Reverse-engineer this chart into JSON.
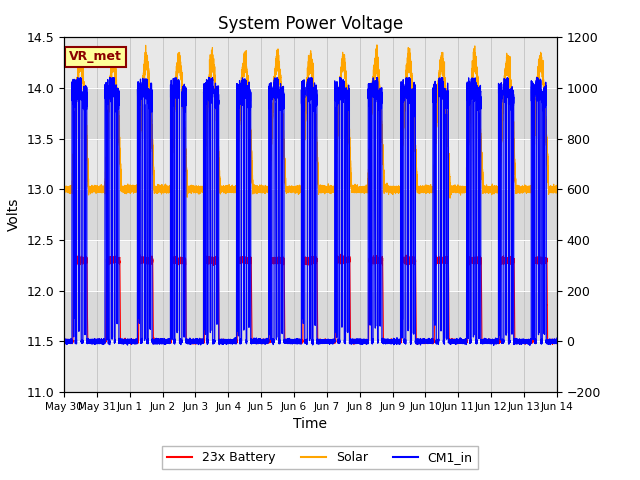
{
  "title": "System Power Voltage",
  "xlabel": "Time",
  "ylabel": "Volts",
  "ylim_left": [
    11.0,
    14.5
  ],
  "ylim_right": [
    -200,
    1200
  ],
  "yticks_left": [
    11.0,
    11.5,
    12.0,
    12.5,
    13.0,
    13.5,
    14.0,
    14.5
  ],
  "yticks_right": [
    -200,
    0,
    200,
    400,
    600,
    800,
    1000,
    1200
  ],
  "legend_labels": [
    "23x Battery",
    "Solar",
    "CM1_in"
  ],
  "line_colors": [
    "red",
    "orange",
    "blue"
  ],
  "annotation_text": "VR_met",
  "annotation_box_color": "#ffff99",
  "annotation_border_color": "#8b0000",
  "plot_bg_color": "#e8e8e8",
  "num_days": 15,
  "points_per_day": 1440,
  "tick_labels": [
    "May 30",
    "May 31",
    "Jun 1",
    "Jun 2",
    "Jun 3",
    "Jun 4",
    "Jun 5",
    "Jun 6",
    "Jun 7",
    "Jun 8",
    "Jun 9",
    "Jun 10",
    "Jun 11",
    "Jun 12",
    "Jun 13",
    "Jun 14"
  ]
}
